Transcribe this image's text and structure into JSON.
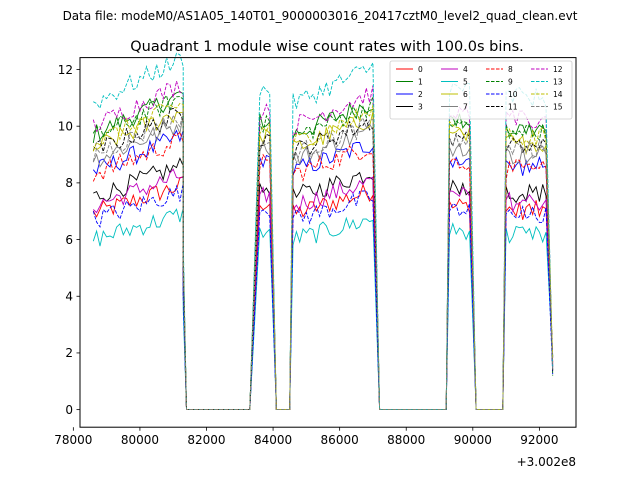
{
  "header": "Data file: modeM0/AS1A05_140T01_9000003016_20417cztM0_level2_quad_clean.evt",
  "chart_data": {
    "type": "line",
    "title": "Quadrant 1 module wise count rates with 100.0s bins.",
    "xlabel": "",
    "ylabel": "",
    "x_offset_label": "+3.002e8",
    "xlim": [
      78200,
      93100
    ],
    "ylim": [
      -0.62,
      12.42
    ],
    "xticks": [
      78000,
      80000,
      82000,
      84000,
      86000,
      88000,
      90000,
      92000
    ],
    "yticks": [
      0,
      2,
      4,
      6,
      8,
      10,
      12
    ],
    "grid": false,
    "legend_position": "top-right",
    "segments": [
      {
        "x0": 78600,
        "x1": 81300,
        "fall_x": 81400,
        "rise_x": null,
        "trend": -0.1
      },
      {
        "x0": 83600,
        "x1": 83900,
        "fall_x": 84100,
        "rise_x": 83300,
        "trend": 0
      },
      {
        "x0": 84600,
        "x1": 87000,
        "fall_x": 87200,
        "rise_x": 84500,
        "trend": -0.08
      },
      {
        "x0": 89300,
        "x1": 89900,
        "fall_x": 90100,
        "rise_x": 89200,
        "trend": 0
      },
      {
        "x0": 91000,
        "x1": 92200,
        "fall_x": 92400,
        "rise_x": 90900,
        "trend": -0.1
      }
    ],
    "series": [
      {
        "name": "0",
        "level": 6.9,
        "color": "#ff0000",
        "dash": false
      },
      {
        "name": "1",
        "level": 9.7,
        "color": "#008000",
        "dash": false
      },
      {
        "name": "2",
        "level": 8.4,
        "color": "#0000ff",
        "dash": false
      },
      {
        "name": "3",
        "level": 7.5,
        "color": "#000000",
        "dash": false
      },
      {
        "name": "4",
        "level": 7.2,
        "color": "#bf00bf",
        "dash": false
      },
      {
        "name": "5",
        "level": 6.0,
        "color": "#00bfbf",
        "dash": false
      },
      {
        "name": "6",
        "level": 9.2,
        "color": "#bfbf00",
        "dash": false
      },
      {
        "name": "7",
        "level": 8.8,
        "color": "#808080",
        "dash": false
      },
      {
        "name": "8",
        "level": 8.3,
        "color": "#ff0000",
        "dash": true
      },
      {
        "name": "9",
        "level": 9.6,
        "color": "#008000",
        "dash": true
      },
      {
        "name": "10",
        "level": 6.7,
        "color": "#0000ff",
        "dash": true
      },
      {
        "name": "11",
        "level": 9.1,
        "color": "#000000",
        "dash": true
      },
      {
        "name": "12",
        "level": 10.0,
        "color": "#bf00bf",
        "dash": true
      },
      {
        "name": "13",
        "level": 10.8,
        "color": "#00bfbf",
        "dash": true
      },
      {
        "name": "14",
        "level": 9.4,
        "color": "#bfbf00",
        "dash": true
      },
      {
        "name": "15",
        "level": 9.0,
        "color": "#808080",
        "dash": true
      }
    ]
  }
}
